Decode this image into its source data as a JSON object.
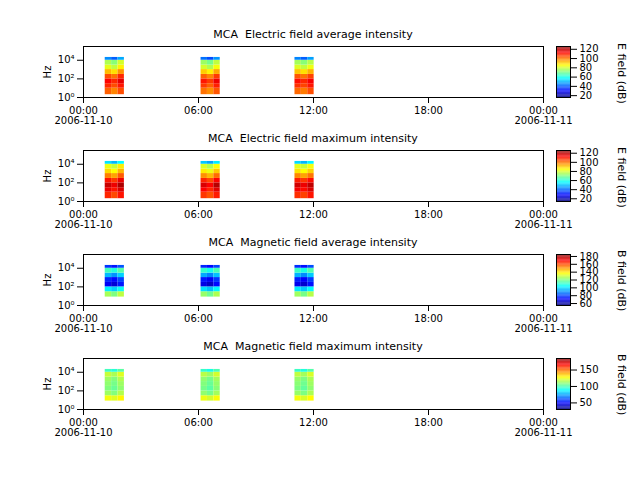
{
  "chart_data": [
    {
      "type": "heatmap",
      "title": "MCA  Electric field average intensity",
      "ylabel": "Hz",
      "log": "y",
      "xlim": [
        "2006-11-10T00:00Z",
        "2006-11-11T00:00Z"
      ],
      "xticks": [
        {
          "value": "2006-11-10T00:00Z",
          "label": "00:00\n2006-11-10"
        },
        {
          "value": "2006-11-10T06:00Z",
          "label": "06:00"
        },
        {
          "value": "2006-11-10T12:00Z",
          "label": "12:00"
        },
        {
          "value": "2006-11-10T18:00Z",
          "label": "18:00"
        },
        {
          "value": "2006-11-11T00:00Z",
          "label": "00:00\n2006-11-11"
        }
      ],
      "ylim": [
        1,
        300000
      ],
      "yticks": [
        {
          "value": 1,
          "label": "10⁰"
        },
        {
          "value": 100,
          "label": "10²"
        },
        {
          "value": 10000,
          "label": "10⁴"
        }
      ],
      "time_bins": [
        [
          "2006-11-10T01:08Z",
          "2006-11-10T01:28Z"
        ],
        [
          "2006-11-10T01:28Z",
          "2006-11-10T01:48Z"
        ],
        [
          "2006-11-10T01:48Z",
          "2006-11-10T02:08Z"
        ],
        [
          "2006-11-10T06:08Z",
          "2006-11-10T06:28Z"
        ],
        [
          "2006-11-10T06:28Z",
          "2006-11-10T06:48Z"
        ],
        [
          "2006-11-10T06:48Z",
          "2006-11-10T07:08Z"
        ],
        [
          "2006-11-10T11:02Z",
          "2006-11-10T11:22Z"
        ],
        [
          "2006-11-10T11:22Z",
          "2006-11-10T11:42Z"
        ],
        [
          "2006-11-10T11:42Z",
          "2006-11-10T12:02Z"
        ]
      ],
      "freq_bins": [
        2,
        10,
        30,
        100,
        300,
        1000,
        3000,
        10000,
        20000
      ],
      "cells": [
        [
          102,
          98,
          104,
          100,
          97,
          103,
          101,
          99,
          104
        ],
        [
          108,
          104,
          110,
          106,
          102,
          109,
          107,
          105,
          110
        ],
        [
          112,
          108,
          115,
          110,
          106,
          114,
          111,
          108,
          113
        ],
        [
          104,
          100,
          108,
          102,
          98,
          106,
          103,
          100,
          105
        ],
        [
          92,
          88,
          96,
          90,
          86,
          94,
          91,
          88,
          93
        ],
        [
          82,
          78,
          86,
          80,
          76,
          84,
          81,
          78,
          83
        ],
        [
          76,
          72,
          80,
          74,
          70,
          78,
          75,
          72,
          77
        ],
        [
          45,
          40,
          48,
          42,
          38,
          46,
          44,
          40,
          47
        ]
      ],
      "colorbar": {
        "label": "E field (dB)",
        "range": [
          16,
          126
        ],
        "ticks": [
          20,
          40,
          60,
          80,
          100,
          120
        ]
      }
    },
    {
      "type": "heatmap",
      "title": "MCA  Electric field maximum intensity",
      "ylabel": "Hz",
      "log": "y",
      "xlim": [
        "2006-11-10T00:00Z",
        "2006-11-11T00:00Z"
      ],
      "xticks": [
        {
          "value": "2006-11-10T00:00Z",
          "label": "00:00\n2006-11-10"
        },
        {
          "value": "2006-11-10T06:00Z",
          "label": "06:00"
        },
        {
          "value": "2006-11-10T12:00Z",
          "label": "12:00"
        },
        {
          "value": "2006-11-10T18:00Z",
          "label": "18:00"
        },
        {
          "value": "2006-11-11T00:00Z",
          "label": "00:00\n2006-11-11"
        }
      ],
      "ylim": [
        1,
        300000
      ],
      "yticks": [
        {
          "value": 1,
          "label": "10⁰"
        },
        {
          "value": 100,
          "label": "10²"
        },
        {
          "value": 10000,
          "label": "10⁴"
        }
      ],
      "time_bins": [
        [
          "2006-11-10T01:08Z",
          "2006-11-10T01:28Z"
        ],
        [
          "2006-11-10T01:28Z",
          "2006-11-10T01:48Z"
        ],
        [
          "2006-11-10T01:48Z",
          "2006-11-10T02:08Z"
        ],
        [
          "2006-11-10T06:08Z",
          "2006-11-10T06:28Z"
        ],
        [
          "2006-11-10T06:28Z",
          "2006-11-10T06:48Z"
        ],
        [
          "2006-11-10T06:48Z",
          "2006-11-10T07:08Z"
        ],
        [
          "2006-11-10T11:02Z",
          "2006-11-10T11:22Z"
        ],
        [
          "2006-11-10T11:22Z",
          "2006-11-10T11:42Z"
        ],
        [
          "2006-11-10T11:42Z",
          "2006-11-10T12:02Z"
        ]
      ],
      "freq_bins": [
        2,
        10,
        30,
        100,
        300,
        1000,
        3000,
        10000,
        20000
      ],
      "cells": [
        [
          108,
          104,
          110,
          106,
          103,
          109,
          107,
          105,
          110
        ],
        [
          114,
          110,
          116,
          112,
          108,
          115,
          113,
          111,
          116
        ],
        [
          118,
          114,
          121,
          116,
          112,
          120,
          117,
          114,
          119
        ],
        [
          110,
          106,
          114,
          108,
          104,
          112,
          109,
          106,
          111
        ],
        [
          98,
          94,
          102,
          96,
          92,
          100,
          97,
          94,
          99
        ],
        [
          88,
          84,
          92,
          86,
          82,
          90,
          87,
          84,
          89
        ],
        [
          82,
          78,
          86,
          80,
          76,
          84,
          81,
          78,
          83
        ],
        [
          53,
          48,
          56,
          50,
          46,
          54,
          52,
          48,
          55
        ]
      ],
      "colorbar": {
        "label": "E field (dB)",
        "range": [
          14,
          126
        ],
        "ticks": [
          20,
          40,
          60,
          80,
          100,
          120
        ]
      }
    },
    {
      "type": "heatmap",
      "title": "MCA  Magnetic field average intensity",
      "ylabel": "Hz",
      "log": "y",
      "xlim": [
        "2006-11-10T00:00Z",
        "2006-11-11T00:00Z"
      ],
      "xticks": [
        {
          "value": "2006-11-10T00:00Z",
          "label": "00:00\n2006-11-10"
        },
        {
          "value": "2006-11-10T06:00Z",
          "label": "06:00"
        },
        {
          "value": "2006-11-10T12:00Z",
          "label": "12:00"
        },
        {
          "value": "2006-11-10T18:00Z",
          "label": "18:00"
        },
        {
          "value": "2006-11-11T00:00Z",
          "label": "00:00\n2006-11-11"
        }
      ],
      "ylim": [
        1,
        300000
      ],
      "yticks": [
        {
          "value": 1,
          "label": "10⁰"
        },
        {
          "value": 100,
          "label": "10²"
        },
        {
          "value": 10000,
          "label": "10⁴"
        }
      ],
      "time_bins": [
        [
          "2006-11-10T01:08Z",
          "2006-11-10T01:28Z"
        ],
        [
          "2006-11-10T01:28Z",
          "2006-11-10T01:48Z"
        ],
        [
          "2006-11-10T01:48Z",
          "2006-11-10T02:08Z"
        ],
        [
          "2006-11-10T06:08Z",
          "2006-11-10T06:28Z"
        ],
        [
          "2006-11-10T06:28Z",
          "2006-11-10T06:48Z"
        ],
        [
          "2006-11-10T06:48Z",
          "2006-11-10T07:08Z"
        ],
        [
          "2006-11-10T11:02Z",
          "2006-11-10T11:22Z"
        ],
        [
          "2006-11-10T11:22Z",
          "2006-11-10T11:42Z"
        ],
        [
          "2006-11-10T11:42Z",
          "2006-11-10T12:02Z"
        ]
      ],
      "freq_bins": [
        8,
        30,
        100,
        300,
        1000,
        3000,
        10000,
        20000
      ],
      "cells": [
        [
          125,
          120,
          128,
          123,
          118,
          126,
          124,
          119,
          127
        ],
        [
          102,
          98,
          105,
          100,
          96,
          103,
          101,
          97,
          104
        ],
        [
          70,
          66,
          74,
          68,
          64,
          72,
          69,
          65,
          73
        ],
        [
          76,
          72,
          80,
          74,
          70,
          78,
          75,
          71,
          79
        ],
        [
          95,
          90,
          98,
          93,
          88,
          96,
          94,
          89,
          97
        ],
        [
          112,
          108,
          115,
          110,
          106,
          113,
          111,
          107,
          114
        ],
        [
          78,
          74,
          82,
          76,
          72,
          80,
          77,
          73,
          81
        ]
      ],
      "colorbar": {
        "label": "B field (dB)",
        "range": [
          55,
          185
        ],
        "ticks": [
          60,
          80,
          100,
          120,
          140,
          160,
          180
        ]
      }
    },
    {
      "type": "heatmap",
      "title": "MCA  Magnetic field maximum intensity",
      "ylabel": "Hz",
      "log": "y",
      "xlim": [
        "2006-11-10T00:00Z",
        "2006-11-11T00:00Z"
      ],
      "xticks": [
        {
          "value": "2006-11-10T00:00Z",
          "label": "00:00\n2006-11-10"
        },
        {
          "value": "2006-11-10T06:00Z",
          "label": "06:00"
        },
        {
          "value": "2006-11-10T12:00Z",
          "label": "12:00"
        },
        {
          "value": "2006-11-10T18:00Z",
          "label": "18:00"
        },
        {
          "value": "2006-11-11T00:00Z",
          "label": "00:00\n2006-11-11"
        }
      ],
      "ylim": [
        1,
        300000
      ],
      "yticks": [
        {
          "value": 1,
          "label": "10⁰"
        },
        {
          "value": 100,
          "label": "10²"
        },
        {
          "value": 10000,
          "label": "10⁴"
        }
      ],
      "time_bins": [
        [
          "2006-11-10T01:08Z",
          "2006-11-10T01:28Z"
        ],
        [
          "2006-11-10T01:28Z",
          "2006-11-10T01:48Z"
        ],
        [
          "2006-11-10T01:48Z",
          "2006-11-10T02:08Z"
        ],
        [
          "2006-11-10T06:08Z",
          "2006-11-10T06:28Z"
        ],
        [
          "2006-11-10T06:28Z",
          "2006-11-10T06:48Z"
        ],
        [
          "2006-11-10T06:48Z",
          "2006-11-10T07:08Z"
        ],
        [
          "2006-11-10T11:02Z",
          "2006-11-10T11:22Z"
        ],
        [
          "2006-11-10T11:22Z",
          "2006-11-10T11:42Z"
        ],
        [
          "2006-11-10T11:42Z",
          "2006-11-10T12:02Z"
        ]
      ],
      "freq_bins": [
        8,
        30,
        100,
        300,
        1000,
        3000,
        10000,
        20000
      ],
      "cells": [
        [
          125,
          122,
          128,
          124,
          120,
          126,
          125,
          121,
          127
        ],
        [
          112,
          108,
          115,
          110,
          106,
          113,
          111,
          107,
          114
        ],
        [
          108,
          104,
          110,
          106,
          102,
          109,
          107,
          103,
          110
        ],
        [
          110,
          106,
          112,
          108,
          104,
          111,
          109,
          105,
          112
        ],
        [
          112,
          108,
          115,
          110,
          106,
          113,
          111,
          107,
          114
        ],
        [
          118,
          114,
          122,
          116,
          112,
          120,
          117,
          113,
          121
        ],
        [
          98,
          94,
          102,
          96,
          92,
          100,
          97,
          93,
          101
        ]
      ],
      "colorbar": {
        "label": "B field (dB)",
        "range": [
          30,
          185
        ],
        "ticks": [
          50,
          100,
          150
        ]
      }
    }
  ]
}
